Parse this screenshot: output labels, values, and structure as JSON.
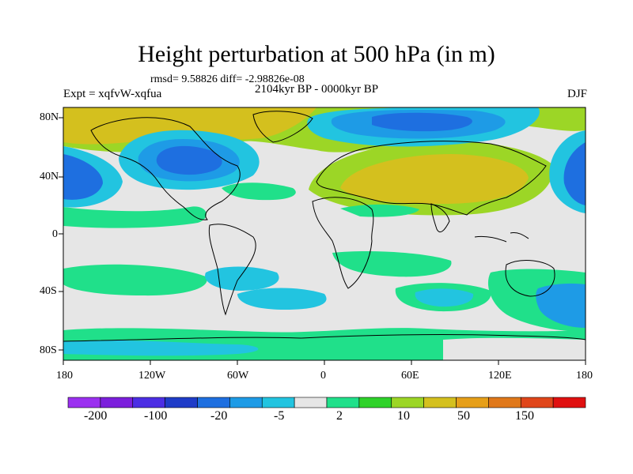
{
  "title": "Height perturbation at 500 hPa (in m)",
  "stats": "rmsd= 9.58826 diff= -2.98826e-08",
  "experiment": "Expt = xqfvW-xqfua",
  "period": "2104kyr BP - 0000kyr BP",
  "season": "DJF",
  "lat_labels": [
    "80N",
    "40N",
    "0",
    "40S",
    "80S"
  ],
  "lon_labels": [
    "180",
    "120W",
    "60W",
    "0",
    "60E",
    "120E",
    "180"
  ],
  "colorbar": {
    "colors": [
      "#9b30f0",
      "#7c1fdc",
      "#4c2ee4",
      "#1f3cc8",
      "#1e6fe0",
      "#1e9be6",
      "#22c4e0",
      "#e6e6e6",
      "#20e08a",
      "#2fd22a",
      "#9cd626",
      "#d4c01e",
      "#e69f19",
      "#e0781a",
      "#e0461a",
      "#e01010"
    ],
    "labels": [
      "-200",
      "-100",
      "-20",
      "-5",
      "2",
      "10",
      "50",
      "150"
    ]
  }
}
